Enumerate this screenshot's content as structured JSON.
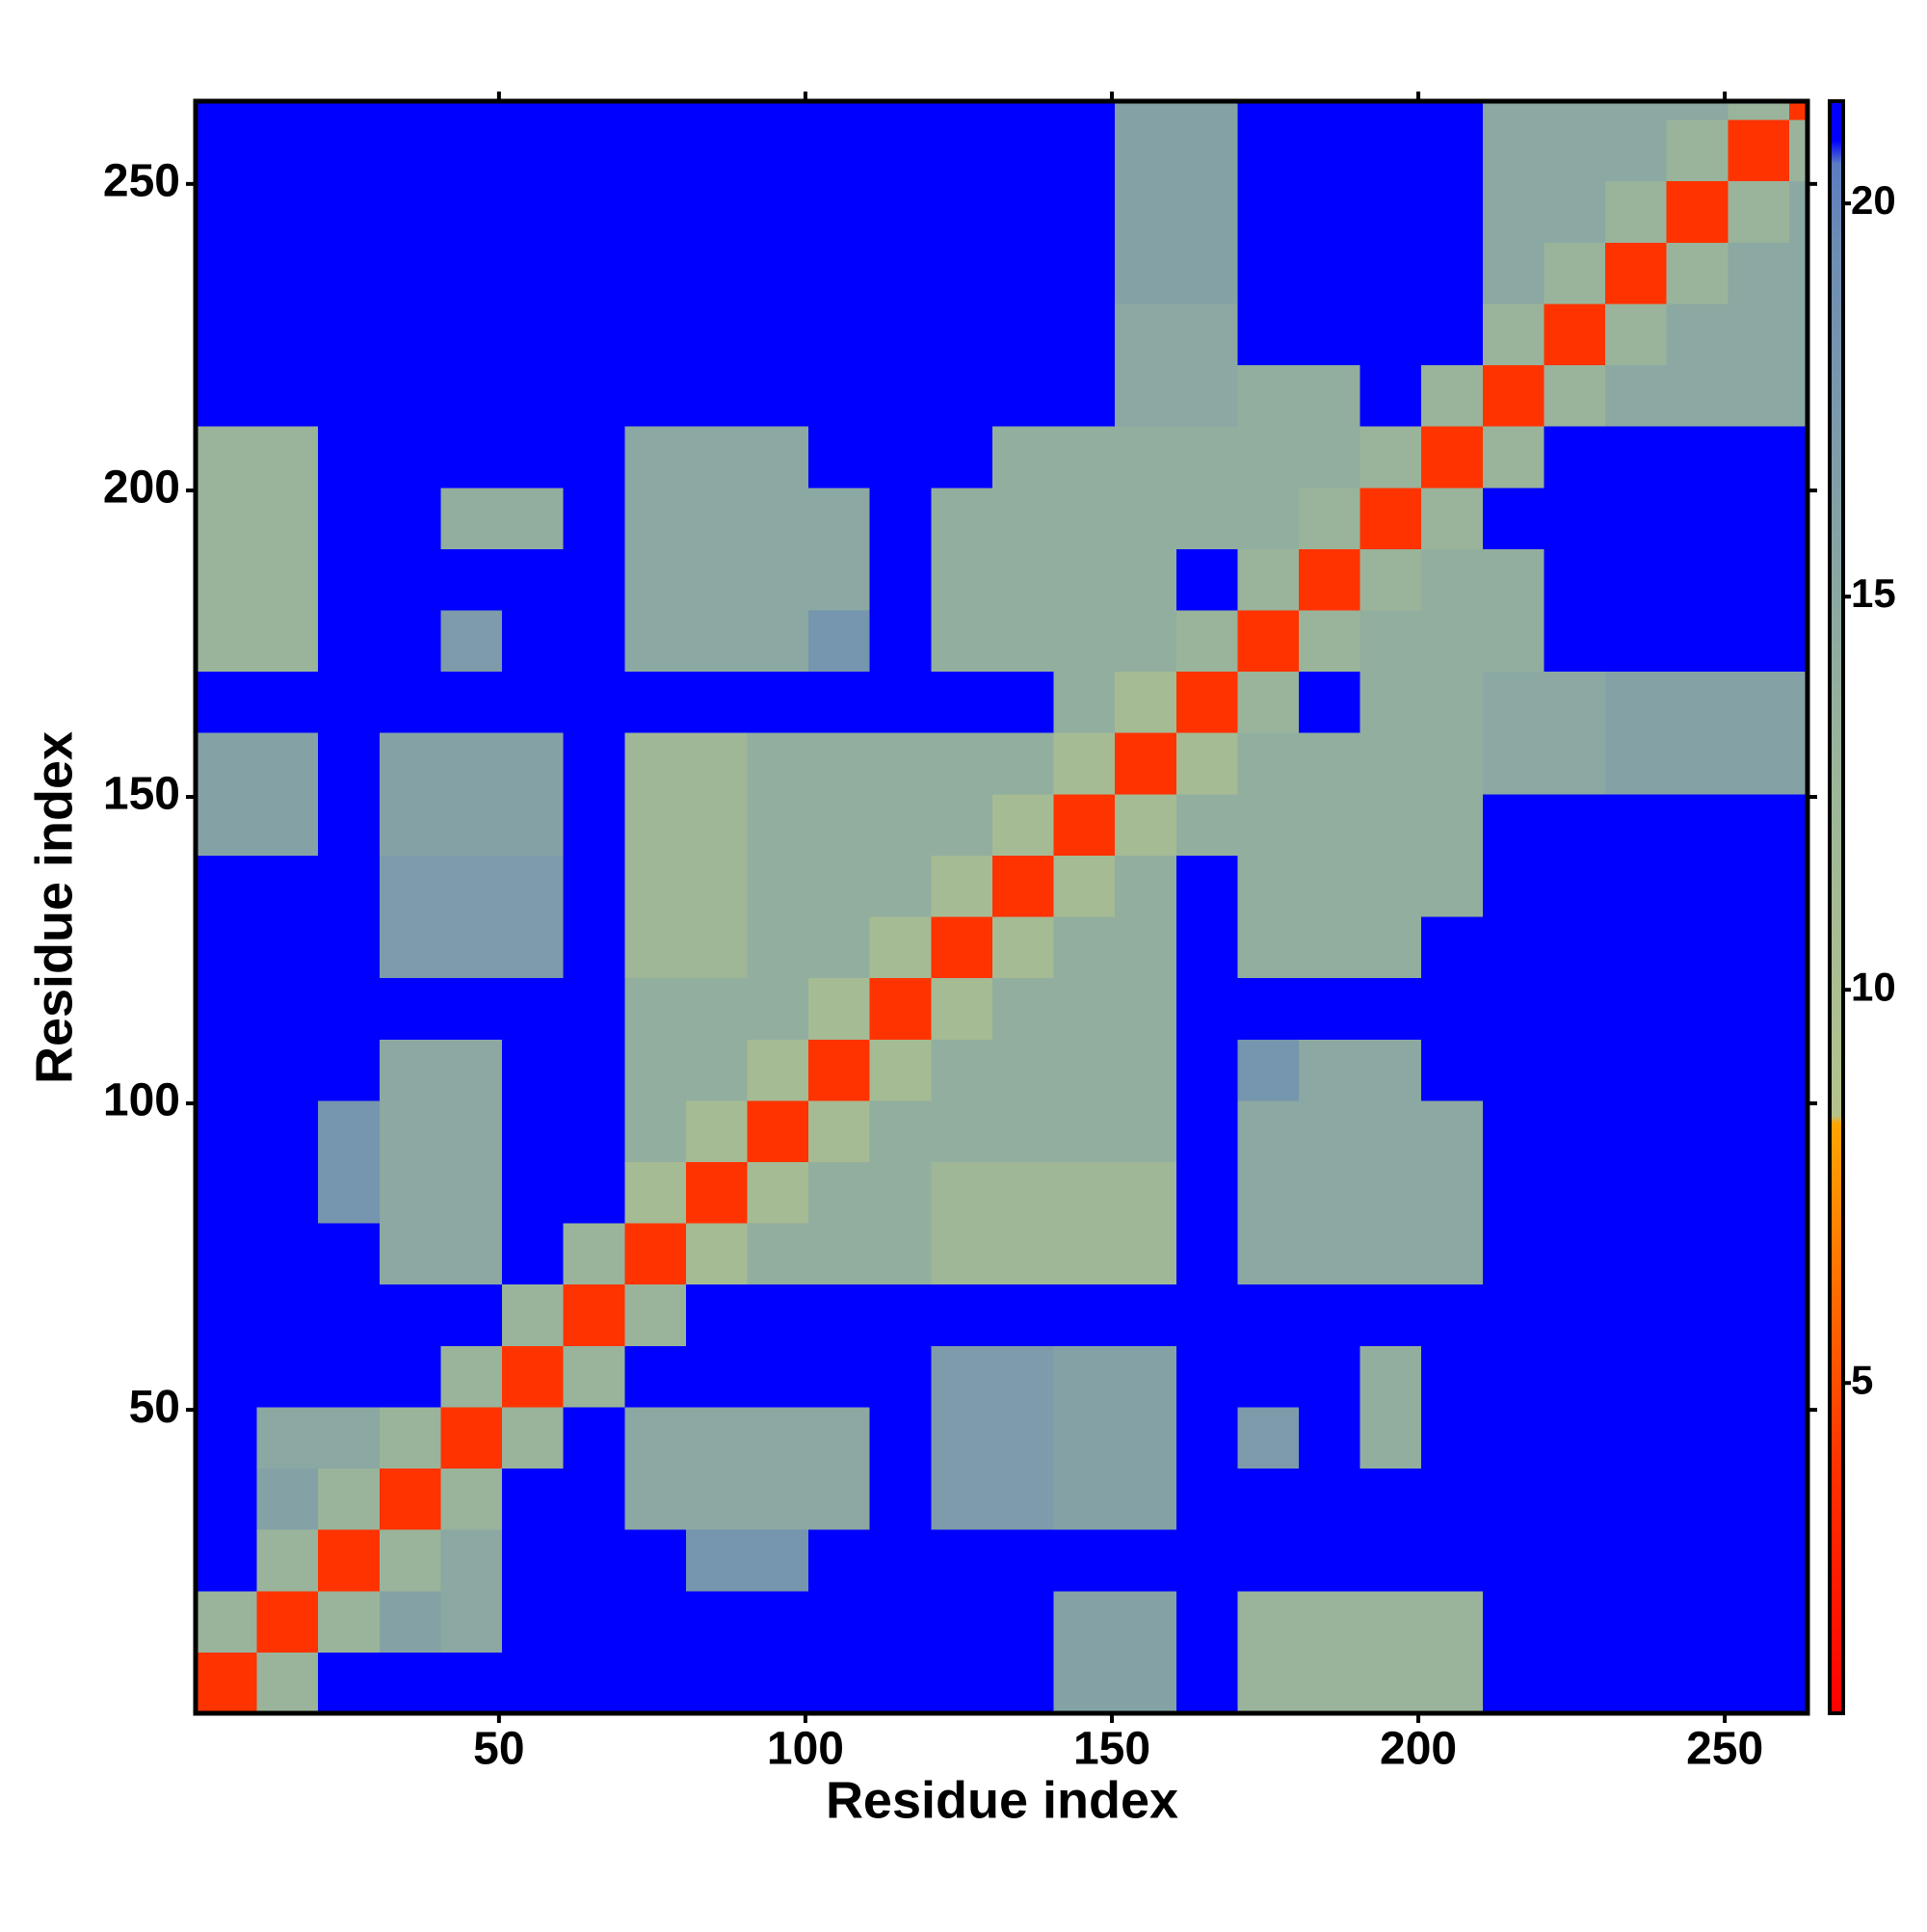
{
  "chart_data": {
    "type": "heatmap",
    "xlabel": "Residue index",
    "ylabel": "Residue index",
    "xlim": [
      0.5,
      263.5
    ],
    "ylim": [
      0.5,
      263.5
    ],
    "xticks": [
      50,
      100,
      150,
      200,
      250
    ],
    "yticks": [
      50,
      100,
      150,
      200,
      250
    ],
    "x_bins": [
      0.5,
      10.5,
      20.5,
      30.5,
      40.5,
      50.5,
      60.5,
      70.5,
      80.5,
      90.5,
      100.5,
      110.5,
      120.5,
      130.5,
      140.5,
      150.5,
      160.5,
      170.5,
      180.5,
      190.5,
      200.5,
      210.5,
      220.5,
      230.5,
      240.5,
      250.5,
      260.5,
      263.5
    ],
    "y_bins": [
      0.5,
      10.5,
      20.5,
      30.5,
      40.5,
      50.5,
      60.5,
      70.5,
      80.5,
      90.5,
      100.5,
      110.5,
      120.5,
      130.5,
      140.5,
      150.5,
      160.5,
      170.5,
      180.5,
      190.5,
      200.5,
      210.5,
      220.5,
      230.5,
      240.5,
      250.5,
      260.5,
      263.5
    ],
    "values": [
      [
        4,
        13,
        21,
        21,
        21,
        21,
        21,
        21,
        21,
        21,
        21,
        21,
        21,
        21,
        16,
        16,
        21,
        13,
        13,
        13,
        13,
        21,
        21,
        21,
        21,
        21,
        21
      ],
      [
        13,
        4,
        13,
        16,
        15,
        21,
        21,
        21,
        21,
        21,
        21,
        21,
        21,
        21,
        16,
        16,
        21,
        13,
        13,
        13,
        13,
        21,
        21,
        21,
        21,
        21,
        21
      ],
      [
        21,
        13,
        4,
        13,
        15,
        21,
        21,
        21,
        18,
        18,
        21,
        21,
        21,
        21,
        21,
        21,
        21,
        21,
        21,
        21,
        21,
        21,
        21,
        21,
        21,
        21,
        21
      ],
      [
        21,
        16,
        13,
        4,
        13,
        21,
        21,
        15,
        15,
        15,
        15,
        21,
        17,
        17,
        16,
        16,
        21,
        21,
        21,
        21,
        21,
        21,
        21,
        21,
        21,
        21,
        21
      ],
      [
        21,
        15,
        15,
        13,
        4,
        13,
        21,
        15,
        15,
        15,
        15,
        21,
        17,
        17,
        16,
        16,
        21,
        17,
        21,
        14,
        21,
        21,
        21,
        21,
        21,
        21,
        21
      ],
      [
        21,
        21,
        21,
        21,
        13,
        4,
        13,
        21,
        21,
        21,
        21,
        21,
        17,
        17,
        16,
        16,
        21,
        21,
        21,
        14,
        21,
        21,
        21,
        21,
        21,
        21,
        21
      ],
      [
        21,
        21,
        21,
        21,
        21,
        13,
        4,
        13,
        21,
        21,
        21,
        21,
        21,
        21,
        21,
        21,
        21,
        21,
        21,
        21,
        21,
        21,
        21,
        21,
        21,
        21,
        21
      ],
      [
        21,
        21,
        21,
        15,
        15,
        21,
        13,
        4,
        11,
        14,
        14,
        14,
        12,
        12,
        12,
        12,
        21,
        15,
        15,
        15,
        15,
        21,
        21,
        21,
        21,
        21,
        21
      ],
      [
        21,
        21,
        18,
        15,
        15,
        21,
        21,
        11,
        4,
        11,
        14,
        14,
        12,
        12,
        12,
        12,
        21,
        15,
        15,
        15,
        15,
        21,
        21,
        21,
        21,
        21,
        21
      ],
      [
        21,
        21,
        18,
        15,
        15,
        21,
        21,
        14,
        11,
        4,
        11,
        14,
        14,
        14,
        14,
        14,
        21,
        15,
        15,
        15,
        15,
        21,
        21,
        21,
        21,
        21,
        21
      ],
      [
        21,
        21,
        21,
        15,
        15,
        21,
        21,
        14,
        14,
        11,
        4,
        11,
        14,
        14,
        14,
        14,
        21,
        18,
        15,
        15,
        21,
        21,
        21,
        21,
        21,
        21,
        21
      ],
      [
        21,
        21,
        21,
        21,
        21,
        21,
        21,
        14,
        14,
        14,
        11,
        4,
        11,
        14,
        14,
        14,
        21,
        21,
        21,
        21,
        21,
        21,
        21,
        21,
        21,
        21,
        21
      ],
      [
        21,
        21,
        21,
        17,
        17,
        17,
        21,
        12,
        12,
        14,
        14,
        11,
        4,
        11,
        14,
        14,
        21,
        14,
        14,
        14,
        21,
        21,
        21,
        21,
        21,
        21,
        21
      ],
      [
        21,
        21,
        21,
        17,
        17,
        17,
        21,
        12,
        12,
        14,
        14,
        14,
        11,
        4,
        11,
        14,
        21,
        14,
        14,
        14,
        14,
        21,
        21,
        21,
        21,
        21,
        21
      ],
      [
        16,
        16,
        21,
        16,
        16,
        16,
        21,
        12,
        12,
        14,
        14,
        14,
        14,
        11,
        4,
        11,
        14,
        14,
        14,
        14,
        14,
        21,
        21,
        21,
        21,
        21,
        21
      ],
      [
        16,
        16,
        21,
        16,
        16,
        16,
        21,
        12,
        12,
        14,
        14,
        14,
        14,
        14,
        11,
        4,
        11,
        14,
        14,
        14,
        14,
        15,
        15,
        16,
        16,
        16,
        16
      ],
      [
        21,
        21,
        21,
        21,
        21,
        21,
        21,
        21,
        21,
        21,
        21,
        21,
        21,
        21,
        14,
        11,
        4,
        13,
        21,
        14,
        14,
        15,
        15,
        16,
        16,
        16,
        16
      ],
      [
        13,
        13,
        21,
        21,
        17,
        21,
        21,
        15,
        15,
        15,
        18,
        21,
        14,
        14,
        14,
        14,
        13,
        4,
        13,
        14,
        14,
        14,
        21,
        21,
        21,
        21,
        21
      ],
      [
        13,
        13,
        21,
        21,
        21,
        21,
        21,
        15,
        15,
        15,
        15,
        21,
        14,
        14,
        14,
        14,
        21,
        13,
        4,
        13,
        14,
        14,
        21,
        21,
        21,
        21,
        21
      ],
      [
        13,
        13,
        21,
        21,
        14,
        14,
        21,
        15,
        15,
        15,
        15,
        21,
        14,
        14,
        14,
        14,
        14,
        14,
        13,
        4,
        13,
        21,
        21,
        21,
        21,
        21,
        21
      ],
      [
        13,
        13,
        21,
        21,
        21,
        21,
        21,
        15,
        15,
        15,
        21,
        21,
        21,
        14,
        14,
        14,
        14,
        14,
        14,
        13,
        4,
        13,
        21,
        21,
        21,
        21,
        21
      ],
      [
        21,
        21,
        21,
        21,
        21,
        21,
        21,
        21,
        21,
        21,
        21,
        21,
        21,
        21,
        21,
        15,
        15,
        14,
        14,
        21,
        13,
        4,
        13,
        15,
        15,
        15,
        15
      ],
      [
        21,
        21,
        21,
        21,
        21,
        21,
        21,
        21,
        21,
        21,
        21,
        21,
        21,
        21,
        21,
        15,
        15,
        21,
        21,
        21,
        21,
        13,
        4,
        13,
        15,
        15,
        15
      ],
      [
        21,
        21,
        21,
        21,
        21,
        21,
        21,
        21,
        21,
        21,
        21,
        21,
        21,
        21,
        21,
        16,
        16,
        21,
        21,
        21,
        21,
        15,
        13,
        4,
        13,
        15,
        15
      ],
      [
        21,
        21,
        21,
        21,
        21,
        21,
        21,
        21,
        21,
        21,
        21,
        21,
        21,
        21,
        21,
        16,
        16,
        21,
        21,
        21,
        21,
        15,
        15,
        13,
        4,
        13,
        15
      ],
      [
        21,
        21,
        21,
        21,
        21,
        21,
        21,
        21,
        21,
        21,
        21,
        21,
        21,
        21,
        21,
        16,
        16,
        21,
        21,
        21,
        21,
        15,
        15,
        15,
        13,
        4,
        13
      ],
      [
        21,
        21,
        21,
        21,
        21,
        21,
        21,
        21,
        21,
        21,
        21,
        21,
        21,
        21,
        21,
        16,
        16,
        21,
        21,
        21,
        21,
        15,
        15,
        15,
        15,
        13,
        4
      ]
    ],
    "colorbar": {
      "lim": [
        0.8,
        21.3
      ],
      "ticks": [
        5,
        10,
        15,
        20
      ]
    },
    "colorscale": [
      [
        0.8,
        "#ff0000"
      ],
      [
        4,
        "#ff3300"
      ],
      [
        8.3,
        "#ffa500"
      ],
      [
        8.4,
        "#b4c38c"
      ],
      [
        13,
        "#99b49a"
      ],
      [
        19.5,
        "#6c8cb4"
      ],
      [
        20.5,
        "#5b7cc0"
      ],
      [
        20.8,
        "#0000ff"
      ],
      [
        21.3,
        "#0000ff"
      ]
    ]
  }
}
